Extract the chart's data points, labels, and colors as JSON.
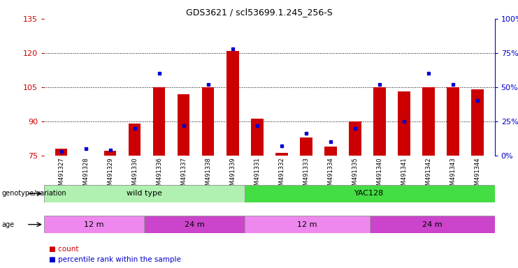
{
  "title": "GDS3621 / scl53699.1.245_256-S",
  "samples": [
    "GSM491327",
    "GSM491328",
    "GSM491329",
    "GSM491330",
    "GSM491336",
    "GSM491337",
    "GSM491338",
    "GSM491339",
    "GSM491331",
    "GSM491332",
    "GSM491333",
    "GSM491334",
    "GSM491335",
    "GSM491340",
    "GSM491341",
    "GSM491342",
    "GSM491343",
    "GSM491344"
  ],
  "count_values": [
    78,
    75,
    77,
    89,
    105,
    102,
    105,
    121,
    91,
    76,
    83,
    79,
    90,
    105,
    103,
    105,
    105,
    104
  ],
  "percentile_values": [
    3,
    5,
    4,
    20,
    60,
    22,
    52,
    78,
    22,
    7,
    16,
    10,
    20,
    52,
    25,
    60,
    52,
    40
  ],
  "ylim_left": [
    75,
    135
  ],
  "ylim_right": [
    0,
    100
  ],
  "yticks_left": [
    75,
    90,
    105,
    120,
    135
  ],
  "yticks_right": [
    0,
    25,
    50,
    75,
    100
  ],
  "bar_color": "#cc0000",
  "dot_color": "#0000cc",
  "bar_width": 0.5,
  "genotype_groups": [
    {
      "label": "wild type",
      "start": 0,
      "end": 8,
      "color": "#b0f0b0"
    },
    {
      "label": "YAC128",
      "start": 8,
      "end": 18,
      "color": "#44dd44"
    }
  ],
  "age_groups": [
    {
      "label": "12 m",
      "start": 0,
      "end": 4,
      "color": "#ee88ee"
    },
    {
      "label": "24 m",
      "start": 4,
      "end": 8,
      "color": "#cc44cc"
    },
    {
      "label": "12 m",
      "start": 8,
      "end": 13,
      "color": "#ee88ee"
    },
    {
      "label": "24 m",
      "start": 13,
      "end": 18,
      "color": "#cc44cc"
    }
  ],
  "legend_count_color": "#cc0000",
  "legend_pct_color": "#0000cc",
  "dotted_line_color": "#000000",
  "axis_label_left_color": "#cc0000",
  "axis_label_right_color": "#0000cc",
  "background_color": "#ffffff"
}
